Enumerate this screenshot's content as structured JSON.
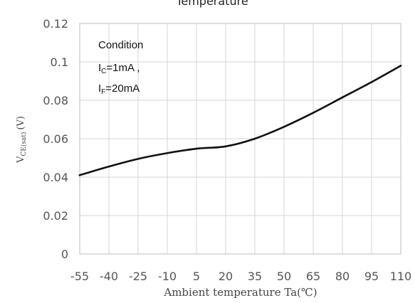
{
  "chart_data": {
    "type": "line",
    "title": "Temperature",
    "xlabel": "Ambient  temperature  Ta(℃)",
    "ylabel": {
      "main": "V",
      "sub": "CE(sat)",
      "unit": "(V)"
    },
    "x_ticks": [
      "-55",
      "-40",
      "-25",
      "-10",
      "5",
      "20",
      "35",
      "50",
      "65",
      "80",
      "95",
      "110"
    ],
    "y_ticks": [
      "0",
      "0.02",
      "0.04",
      "0.06",
      "0.08",
      "0.1",
      "0.12"
    ],
    "xlim": [
      -55,
      110
    ],
    "ylim": [
      0,
      0.12
    ],
    "grid": true,
    "series": [
      {
        "color": "#111111",
        "x": [
          -55,
          -40,
          -25,
          -10,
          5,
          20,
          35,
          50,
          65,
          80,
          95,
          110
        ],
        "y": [
          0.041,
          0.0455,
          0.0495,
          0.0525,
          0.0548,
          0.056,
          0.06,
          0.0662,
          0.0735,
          0.0815,
          0.0895,
          0.098
        ]
      }
    ],
    "annotation": {
      "heading": "Condition",
      "line1": {
        "symbol": "I",
        "sub": "C",
        "text": "=1mA ,"
      },
      "line2": {
        "symbol": "I",
        "sub": "F",
        "text": "=20mA"
      }
    }
  }
}
